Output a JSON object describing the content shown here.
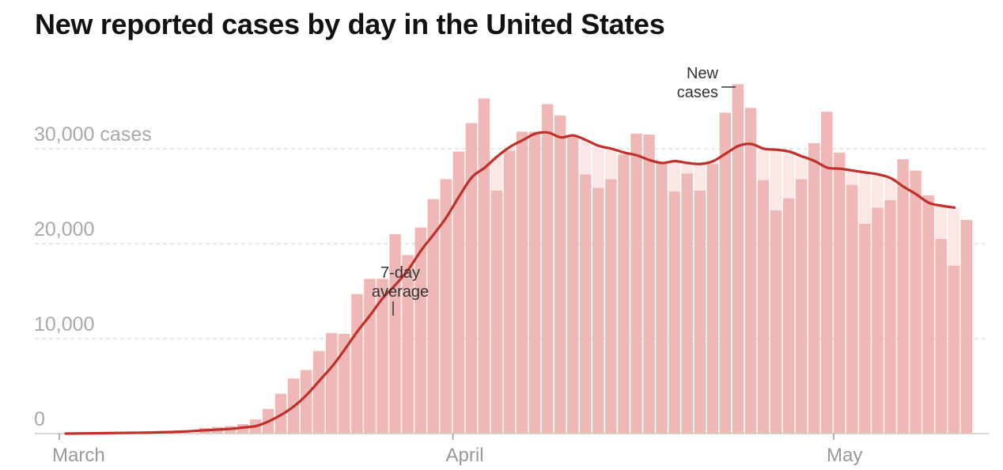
{
  "title": "New reported cases by day in the United States",
  "colors": {
    "bar": "#efb8b6",
    "gap_fill": "#fbe7e6",
    "avg_line": "#c0302a",
    "grid": "#d9d9d9",
    "baseline": "#cccccc"
  },
  "annotations": {
    "avg_label_1": "7-day",
    "avg_label_2": "average",
    "new_label_1": "New",
    "new_label_2": "cases"
  },
  "chart_data": {
    "type": "bar",
    "title": "New reported cases by day in the United States",
    "x_start": "2020-03-01",
    "x_end": "2020-05-13",
    "ylim": [
      0,
      37000
    ],
    "grid": "horizontal dashed",
    "y_ticks": [
      {
        "value": 0,
        "label": "0"
      },
      {
        "value": 10000,
        "label": "10,000"
      },
      {
        "value": 20000,
        "label": "20,000"
      },
      {
        "value": 30000,
        "label": "30,000 cases"
      }
    ],
    "x_ticks": [
      {
        "date": "2020-03-01",
        "label": "March"
      },
      {
        "date": "2020-04-01",
        "label": "April"
      },
      {
        "date": "2020-05-01",
        "label": "May"
      }
    ],
    "series": [
      {
        "name": "New cases",
        "kind": "bar",
        "points": [
          [
            "2020-03-12",
            600
          ],
          [
            "2020-03-13",
            700
          ],
          [
            "2020-03-14",
            800
          ],
          [
            "2020-03-15",
            1000
          ],
          [
            "2020-03-16",
            1500
          ],
          [
            "2020-03-17",
            2600
          ],
          [
            "2020-03-18",
            4200
          ],
          [
            "2020-03-19",
            5800
          ],
          [
            "2020-03-20",
            6700
          ],
          [
            "2020-03-21",
            8700
          ],
          [
            "2020-03-22",
            10600
          ],
          [
            "2020-03-23",
            10500
          ],
          [
            "2020-03-24",
            14700
          ],
          [
            "2020-03-25",
            16300
          ],
          [
            "2020-03-26",
            16300
          ],
          [
            "2020-03-27",
            21000
          ],
          [
            "2020-03-28",
            18800
          ],
          [
            "2020-03-29",
            21700
          ],
          [
            "2020-03-30",
            24700
          ],
          [
            "2020-03-31",
            26800
          ],
          [
            "2020-04-01",
            29700
          ],
          [
            "2020-04-02",
            32700
          ],
          [
            "2020-04-03",
            35300
          ],
          [
            "2020-04-04",
            25600
          ],
          [
            "2020-04-05",
            29800
          ],
          [
            "2020-04-06",
            31800
          ],
          [
            "2020-04-07",
            31800
          ],
          [
            "2020-04-08",
            34700
          ],
          [
            "2020-04-09",
            33500
          ],
          [
            "2020-04-10",
            31300
          ],
          [
            "2020-04-11",
            27300
          ],
          [
            "2020-04-12",
            25900
          ],
          [
            "2020-04-13",
            26800
          ],
          [
            "2020-04-14",
            29400
          ],
          [
            "2020-04-15",
            31600
          ],
          [
            "2020-04-16",
            31500
          ],
          [
            "2020-04-17",
            28600
          ],
          [
            "2020-04-18",
            25500
          ],
          [
            "2020-04-19",
            27400
          ],
          [
            "2020-04-20",
            25600
          ],
          [
            "2020-04-21",
            28400
          ],
          [
            "2020-04-22",
            33800
          ],
          [
            "2020-04-23",
            36800
          ],
          [
            "2020-04-24",
            34300
          ],
          [
            "2020-04-25",
            26700
          ],
          [
            "2020-04-26",
            23500
          ],
          [
            "2020-04-27",
            24800
          ],
          [
            "2020-04-28",
            26800
          ],
          [
            "2020-04-29",
            30600
          ],
          [
            "2020-04-30",
            33900
          ],
          [
            "2020-05-01",
            29600
          ],
          [
            "2020-05-02",
            26200
          ],
          [
            "2020-05-03",
            22100
          ],
          [
            "2020-05-04",
            23800
          ],
          [
            "2020-05-05",
            24600
          ],
          [
            "2020-05-06",
            28900
          ],
          [
            "2020-05-07",
            27700
          ],
          [
            "2020-05-08",
            25100
          ],
          [
            "2020-05-09",
            20500
          ],
          [
            "2020-05-10",
            17700
          ],
          [
            "2020-05-11",
            22500
          ]
        ]
      },
      {
        "name": "7-day average",
        "kind": "line",
        "points": [
          [
            "2020-03-01",
            0
          ],
          [
            "2020-03-07",
            100
          ],
          [
            "2020-03-10",
            200
          ],
          [
            "2020-03-12",
            350
          ],
          [
            "2020-03-14",
            500
          ],
          [
            "2020-03-15",
            650
          ],
          [
            "2020-03-16",
            800
          ],
          [
            "2020-03-17",
            1300
          ],
          [
            "2020-03-18",
            2000
          ],
          [
            "2020-03-19",
            2900
          ],
          [
            "2020-03-20",
            4100
          ],
          [
            "2020-03-21",
            5600
          ],
          [
            "2020-03-22",
            7100
          ],
          [
            "2020-03-23",
            8900
          ],
          [
            "2020-03-24",
            10800
          ],
          [
            "2020-03-25",
            12500
          ],
          [
            "2020-03-26",
            14300
          ],
          [
            "2020-03-27",
            15700
          ],
          [
            "2020-03-28",
            17300
          ],
          [
            "2020-03-29",
            19300
          ],
          [
            "2020-03-30",
            21000
          ],
          [
            "2020-03-31",
            22800
          ],
          [
            "2020-04-01",
            25000
          ],
          [
            "2020-04-02",
            27000
          ],
          [
            "2020-04-03",
            28000
          ],
          [
            "2020-04-04",
            29200
          ],
          [
            "2020-04-05",
            30200
          ],
          [
            "2020-04-06",
            30900
          ],
          [
            "2020-04-07",
            31600
          ],
          [
            "2020-04-08",
            31700
          ],
          [
            "2020-04-09",
            31200
          ],
          [
            "2020-04-10",
            31400
          ],
          [
            "2020-04-11",
            30900
          ],
          [
            "2020-04-12",
            30300
          ],
          [
            "2020-04-13",
            30000
          ],
          [
            "2020-04-14",
            29600
          ],
          [
            "2020-04-15",
            29300
          ],
          [
            "2020-04-16",
            28800
          ],
          [
            "2020-04-17",
            28500
          ],
          [
            "2020-04-18",
            28700
          ],
          [
            "2020-04-19",
            28500
          ],
          [
            "2020-04-20",
            28400
          ],
          [
            "2020-04-21",
            28700
          ],
          [
            "2020-04-22",
            29500
          ],
          [
            "2020-04-23",
            30300
          ],
          [
            "2020-04-24",
            30500
          ],
          [
            "2020-04-25",
            30000
          ],
          [
            "2020-04-26",
            29900
          ],
          [
            "2020-04-27",
            29700
          ],
          [
            "2020-04-28",
            29200
          ],
          [
            "2020-04-29",
            28700
          ],
          [
            "2020-04-30",
            28000
          ],
          [
            "2020-05-01",
            27900
          ],
          [
            "2020-05-02",
            27700
          ],
          [
            "2020-05-03",
            27500
          ],
          [
            "2020-05-04",
            27300
          ],
          [
            "2020-05-05",
            26900
          ],
          [
            "2020-05-06",
            26000
          ],
          [
            "2020-05-07",
            25200
          ],
          [
            "2020-05-08",
            24300
          ],
          [
            "2020-05-09",
            24000
          ],
          [
            "2020-05-10",
            23800
          ]
        ]
      }
    ]
  }
}
